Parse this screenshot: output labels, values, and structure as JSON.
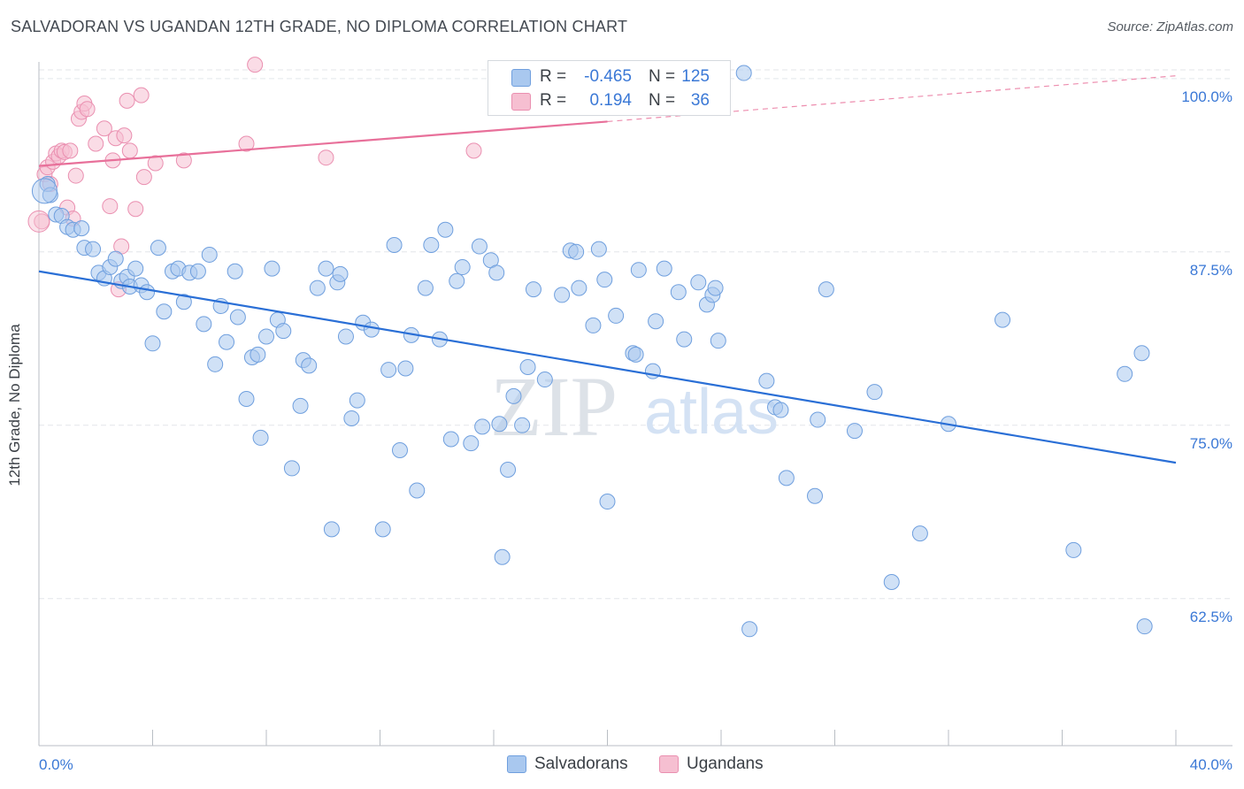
{
  "title": "SALVADORAN VS UGANDAN 12TH GRADE, NO DIPLOMA CORRELATION CHART",
  "source": "Source: ZipAtlas.com",
  "watermark": {
    "zip": "ZIP",
    "atlas": "atlas"
  },
  "colors": {
    "blue_fill": "#a9c8ef",
    "blue_stroke": "#6f9fde",
    "blue_line": "#2a6fd6",
    "pink_fill": "#f6bfd1",
    "pink_stroke": "#ea8fb0",
    "pink_line": "#e8709a",
    "axis_text": "#3a78d6",
    "grid": "#e3e6ea"
  },
  "legend": {
    "rows": [
      {
        "r_label": "R =",
        "r_value": "-0.465",
        "n_label": "N =",
        "n_value": "125"
      },
      {
        "r_label": "R =",
        "r_value": "0.194",
        "n_label": "N =",
        "n_value": "36"
      }
    ]
  },
  "bottom_legend": [
    {
      "label": "Salvadorans"
    },
    {
      "label": "Ugandans"
    }
  ],
  "chart_data": {
    "type": "scatter",
    "title": "SALVADORAN VS UGANDAN 12TH GRADE, NO DIPLOMA CORRELATION CHART",
    "xlabel": "",
    "ylabel": "12th Grade, No Diploma",
    "xlim": [
      0,
      40
    ],
    "ylim": [
      51.9,
      101.2
    ],
    "x_ticks": [
      0,
      4,
      8,
      12,
      16,
      20,
      24,
      28,
      32,
      36,
      40
    ],
    "x_tick_labels": [
      {
        "value": 0,
        "label": "0.0%"
      },
      {
        "value": 40,
        "label": "40.0%"
      }
    ],
    "y_ticks": [
      {
        "value": 62.5,
        "label": "62.5%"
      },
      {
        "value": 75.0,
        "label": "75.0%"
      },
      {
        "value": 87.5,
        "label": "87.5%"
      },
      {
        "value": 100.0,
        "label": "100.0%"
      }
    ],
    "grid": true,
    "legend_position": "top-center",
    "series": [
      {
        "name": "Salvadorans",
        "r": -0.465,
        "n": 125,
        "trend": {
          "x": [
            0,
            40
          ],
          "y": [
            86.1,
            72.3
          ],
          "dashed_from_x": null
        },
        "points": [
          [
            0.3,
            92.4
          ],
          [
            0.4,
            91.6
          ],
          [
            0.6,
            90.2
          ],
          [
            0.8,
            90.1
          ],
          [
            1.0,
            89.3
          ],
          [
            1.2,
            89.1
          ],
          [
            1.5,
            89.2
          ],
          [
            1.6,
            87.8
          ],
          [
            1.9,
            87.7
          ],
          [
            2.1,
            86.0
          ],
          [
            2.3,
            85.6
          ],
          [
            2.5,
            86.4
          ],
          [
            2.7,
            87.0
          ],
          [
            2.9,
            85.4
          ],
          [
            3.1,
            85.7
          ],
          [
            3.2,
            85.0
          ],
          [
            3.4,
            86.3
          ],
          [
            3.6,
            85.1
          ],
          [
            3.8,
            84.6
          ],
          [
            4.0,
            80.9
          ],
          [
            4.2,
            87.8
          ],
          [
            4.4,
            83.2
          ],
          [
            4.7,
            86.1
          ],
          [
            4.9,
            86.3
          ],
          [
            5.1,
            83.9
          ],
          [
            5.3,
            86.0
          ],
          [
            5.6,
            86.1
          ],
          [
            5.8,
            82.3
          ],
          [
            6.0,
            87.3
          ],
          [
            6.2,
            79.4
          ],
          [
            6.4,
            83.6
          ],
          [
            6.6,
            81.0
          ],
          [
            6.9,
            86.1
          ],
          [
            7.0,
            82.8
          ],
          [
            7.3,
            76.9
          ],
          [
            7.5,
            79.9
          ],
          [
            7.7,
            80.1
          ],
          [
            7.8,
            74.1
          ],
          [
            8.0,
            81.4
          ],
          [
            8.2,
            86.3
          ],
          [
            8.4,
            82.6
          ],
          [
            8.6,
            81.8
          ],
          [
            8.9,
            71.9
          ],
          [
            9.2,
            76.4
          ],
          [
            9.3,
            79.7
          ],
          [
            9.5,
            79.3
          ],
          [
            9.8,
            84.9
          ],
          [
            10.1,
            86.3
          ],
          [
            10.3,
            67.5
          ],
          [
            10.5,
            85.3
          ],
          [
            10.6,
            85.9
          ],
          [
            10.8,
            81.4
          ],
          [
            11.0,
            75.5
          ],
          [
            11.2,
            76.8
          ],
          [
            11.4,
            82.4
          ],
          [
            11.7,
            81.9
          ],
          [
            12.1,
            67.5
          ],
          [
            12.3,
            79.0
          ],
          [
            12.5,
            88.0
          ],
          [
            12.7,
            73.2
          ],
          [
            12.9,
            79.1
          ],
          [
            13.1,
            81.5
          ],
          [
            13.3,
            70.3
          ],
          [
            13.6,
            84.9
          ],
          [
            13.8,
            88.0
          ],
          [
            14.1,
            81.2
          ],
          [
            14.3,
            89.1
          ],
          [
            14.5,
            74.0
          ],
          [
            14.7,
            85.4
          ],
          [
            14.9,
            86.4
          ],
          [
            15.2,
            73.7
          ],
          [
            15.5,
            87.9
          ],
          [
            15.6,
            74.9
          ],
          [
            15.9,
            86.9
          ],
          [
            16.1,
            86.0
          ],
          [
            16.2,
            75.1
          ],
          [
            16.3,
            65.5
          ],
          [
            16.5,
            71.8
          ],
          [
            16.7,
            77.1
          ],
          [
            17.0,
            75.0
          ],
          [
            17.2,
            79.2
          ],
          [
            17.4,
            84.8
          ],
          [
            17.8,
            78.3
          ],
          [
            18.4,
            84.4
          ],
          [
            18.7,
            87.6
          ],
          [
            18.9,
            87.5
          ],
          [
            19.0,
            84.9
          ],
          [
            19.5,
            82.2
          ],
          [
            19.7,
            87.7
          ],
          [
            19.9,
            85.5
          ],
          [
            20.0,
            69.5
          ],
          [
            20.3,
            82.9
          ],
          [
            20.9,
            80.2
          ],
          [
            21.0,
            80.1
          ],
          [
            21.1,
            86.2
          ],
          [
            21.6,
            78.9
          ],
          [
            21.7,
            82.5
          ],
          [
            22.0,
            86.3
          ],
          [
            22.5,
            84.6
          ],
          [
            22.7,
            81.2
          ],
          [
            23.2,
            85.3
          ],
          [
            23.5,
            83.7
          ],
          [
            23.7,
            84.4
          ],
          [
            23.8,
            84.9
          ],
          [
            23.9,
            81.1
          ],
          [
            24.8,
            100.4
          ],
          [
            25.0,
            60.3
          ],
          [
            25.6,
            78.2
          ],
          [
            25.9,
            76.3
          ],
          [
            26.1,
            76.1
          ],
          [
            26.3,
            71.2
          ],
          [
            27.3,
            69.9
          ],
          [
            27.4,
            75.4
          ],
          [
            27.7,
            84.8
          ],
          [
            28.7,
            74.6
          ],
          [
            29.4,
            77.4
          ],
          [
            30.0,
            63.7
          ],
          [
            31.0,
            67.2
          ],
          [
            33.9,
            82.6
          ],
          [
            32.0,
            75.1
          ],
          [
            36.4,
            66.0
          ],
          [
            38.2,
            78.7
          ],
          [
            38.8,
            80.2
          ],
          [
            38.9,
            60.5
          ]
        ]
      },
      {
        "name": "Ugandans",
        "r": 0.194,
        "n": 36,
        "trend": {
          "x": [
            0,
            20,
            40
          ],
          "y": [
            93.7,
            96.9,
            100.2
          ],
          "dashed_from_x": 20
        },
        "points": [
          [
            0.1,
            89.7
          ],
          [
            0.2,
            93.1
          ],
          [
            0.3,
            93.6
          ],
          [
            0.4,
            92.4
          ],
          [
            0.5,
            94.0
          ],
          [
            0.6,
            94.6
          ],
          [
            0.7,
            94.4
          ],
          [
            0.8,
            94.8
          ],
          [
            0.9,
            94.7
          ],
          [
            1.0,
            90.7
          ],
          [
            1.1,
            94.8
          ],
          [
            1.2,
            89.9
          ],
          [
            1.3,
            93.0
          ],
          [
            1.4,
            97.1
          ],
          [
            1.5,
            97.6
          ],
          [
            1.6,
            98.2
          ],
          [
            1.7,
            97.8
          ],
          [
            2.0,
            95.3
          ],
          [
            2.3,
            96.4
          ],
          [
            2.5,
            90.8
          ],
          [
            2.6,
            94.1
          ],
          [
            2.7,
            95.7
          ],
          [
            2.9,
            87.9
          ],
          [
            2.8,
            84.8
          ],
          [
            3.0,
            95.9
          ],
          [
            3.1,
            98.4
          ],
          [
            3.2,
            94.8
          ],
          [
            3.4,
            90.6
          ],
          [
            3.6,
            98.8
          ],
          [
            3.7,
            92.9
          ],
          [
            4.1,
            93.9
          ],
          [
            5.1,
            94.1
          ],
          [
            7.3,
            95.3
          ],
          [
            7.6,
            101.0
          ],
          [
            10.1,
            94.3
          ],
          [
            15.3,
            94.8
          ]
        ]
      }
    ]
  }
}
